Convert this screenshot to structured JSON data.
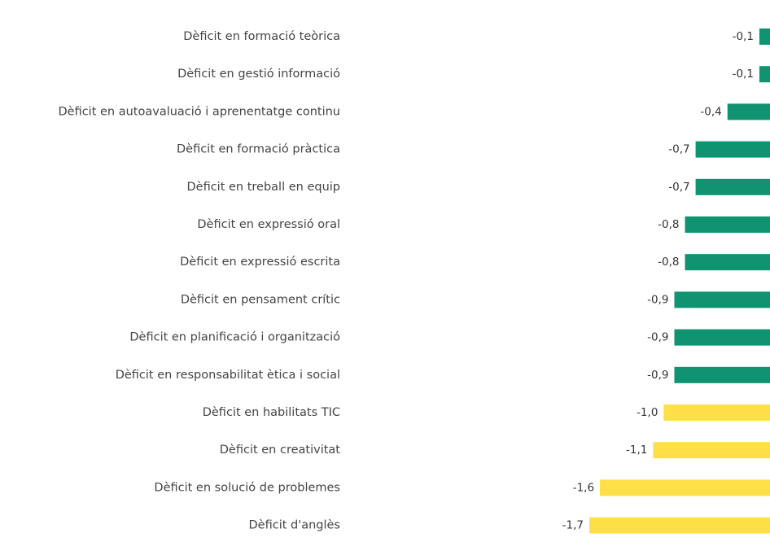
{
  "chart_data": {
    "type": "bar",
    "orientation": "horizontal",
    "categories": [
      "Dèficit en formació teòrica",
      "Dèficit en gestió informació",
      "Dèficit en autoavaluació i aprenentatge continu",
      "Dèficit en formació pràctica",
      "Dèficit en treball en equip",
      "Dèficit en expressió oral",
      "Dèficit en expressió escrita",
      "Dèficit en pensament crític",
      "Dèficit en planificació i organització",
      "Dèficit en responsabilitat ètica i social",
      "Dèficit en habilitats TIC",
      "Dèficit en creativitat",
      "Dèficit en solució de problemes",
      "Dèficit d'anglès"
    ],
    "values": [
      -0.1,
      -0.1,
      -0.4,
      -0.7,
      -0.7,
      -0.8,
      -0.8,
      -0.9,
      -0.9,
      -0.9,
      -1.0,
      -1.1,
      -1.6,
      -1.7
    ],
    "value_labels": [
      "-0,1",
      "-0,1",
      "-0,4",
      "-0,7",
      "-0,7",
      "-0,8",
      "-0,8",
      "-0,9",
      "-0,9",
      "-0,9",
      "-1,0",
      "-1,1",
      "-1,6",
      "-1,7"
    ],
    "colors": [
      "#0f9370",
      "#0f9370",
      "#0f9370",
      "#0f9370",
      "#0f9370",
      "#0f9370",
      "#0f9370",
      "#0f9370",
      "#0f9370",
      "#0f9370",
      "#fde047",
      "#fde047",
      "#fde047",
      "#fde047"
    ],
    "xlim": [
      -1.7,
      0
    ]
  }
}
